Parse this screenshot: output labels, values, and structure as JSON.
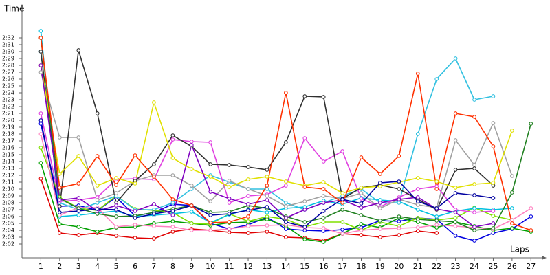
{
  "chart_data": {
    "type": "line",
    "ylabel": "Time",
    "xlabel": "Laps",
    "x": [
      1,
      2,
      3,
      4,
      5,
      6,
      7,
      8,
      9,
      10,
      11,
      12,
      13,
      14,
      15,
      16,
      17,
      18,
      19,
      20,
      21,
      22,
      23,
      24,
      25,
      26,
      27
    ],
    "xlim": [
      0,
      27.5
    ],
    "xticks": [
      1,
      2,
      3,
      4,
      5,
      6,
      7,
      8,
      9,
      10,
      11,
      12,
      13,
      14,
      15,
      16,
      17,
      18,
      19,
      20,
      21,
      22,
      23,
      24,
      25,
      26,
      27
    ],
    "ylim": [
      120,
      155
    ],
    "yticks": [
      {
        "value": 122,
        "label": "2:02"
      },
      {
        "value": 123,
        "label": "2:03"
      },
      {
        "value": 124,
        "label": "2:04"
      },
      {
        "value": 125,
        "label": "2:05"
      },
      {
        "value": 126,
        "label": "2:06"
      },
      {
        "value": 127,
        "label": "2:07"
      },
      {
        "value": 128,
        "label": "2:08"
      },
      {
        "value": 129,
        "label": "2:09"
      },
      {
        "value": 130,
        "label": "2:10"
      },
      {
        "value": 131,
        "label": "2:11"
      },
      {
        "value": 132,
        "label": "2:12"
      },
      {
        "value": 133,
        "label": "2:13"
      },
      {
        "value": 134,
        "label": "2:14"
      },
      {
        "value": 135,
        "label": "2:15"
      },
      {
        "value": 136,
        "label": "2:16"
      },
      {
        "value": 137,
        "label": "2:17"
      },
      {
        "value": 138,
        "label": "2:18"
      },
      {
        "value": 139,
        "label": "2:19"
      },
      {
        "value": 140,
        "label": "2:20"
      },
      {
        "value": 141,
        "label": "2:21"
      },
      {
        "value": 142,
        "label": "2:22"
      },
      {
        "value": 143,
        "label": "2:23"
      },
      {
        "value": 144,
        "label": "2:24"
      },
      {
        "value": 145,
        "label": "2:25"
      },
      {
        "value": 146,
        "label": "2:26"
      },
      {
        "value": 147,
        "label": "2:27"
      },
      {
        "value": 148,
        "label": "2:28"
      },
      {
        "value": 149,
        "label": "2:29"
      },
      {
        "value": 150,
        "label": "2:30"
      },
      {
        "value": 151,
        "label": "2:31"
      },
      {
        "value": 152,
        "label": "2:32"
      }
    ],
    "grid": false,
    "series": [
      {
        "color": "#e00000",
        "values": [
          131.5,
          123.6,
          123.3,
          123.6,
          123.2,
          122.9,
          122.8,
          123.8,
          124.2,
          124.0,
          123.7,
          123.6,
          123.8,
          123.0,
          122.9,
          122.5,
          123.5,
          123.3,
          123.0,
          123.3,
          123.9,
          123.6,
          null,
          null,
          null,
          null,
          null
        ]
      },
      {
        "color": "#0000e0",
        "values": [
          139.5,
          127.5,
          127.6,
          126.9,
          128.8,
          126.1,
          126.6,
          127.8,
          127.6,
          125.0,
          124.2,
          124.8,
          125.9,
          124.2,
          124.0,
          123.9,
          124.1,
          124.4,
          125.4,
          125.3,
          125.8,
          125.6,
          123.2,
          122.5,
          123.6,
          124.2,
          126.0
        ]
      },
      {
        "color": "#00a000",
        "values": [
          133.8,
          124.9,
          124.5,
          123.8,
          124.4,
          124.5,
          125.0,
          125.3,
          125.0,
          124.7,
          125.1,
          125.2,
          125.6,
          124.6,
          122.7,
          122.3,
          123.5,
          124.9,
          124.4,
          125.8,
          125.2,
          124.4,
          125.2,
          124.6,
          124.0,
          124.3,
          123.8
        ]
      },
      {
        "color": "#80e000",
        "values": [
          136.0,
          128.8,
          127.2,
          126.9,
          129.0,
          127.1,
          126.9,
          126.6,
          125.0,
          124.9,
          126.4,
          125.3,
          126.0,
          125.6,
          124.5,
          125.2,
          125.2,
          124.0,
          125.2,
          124.6,
          125.8,
          125.5,
          125.8,
          127.3,
          126.1,
          125.5,
          null
        ]
      },
      {
        "color": "#00c0e0",
        "values": [
          153.0,
          126.0,
          126.2,
          126.5,
          126.8,
          126.0,
          126.2,
          126.4,
          126.7,
          125.1,
          126.3,
          127.0,
          126.6,
          127.2,
          127.4,
          128.3,
          127.8,
          128.7,
          128.4,
          128.2,
          127.0,
          126.0,
          126.8,
          127.2,
          127.0,
          127.2,
          null
        ]
      },
      {
        "color": "#30c0e0",
        "values": [
          150.0,
          128.0,
          127.0,
          128.0,
          129.0,
          127.0,
          127.0,
          128.0,
          130.0,
          132.0,
          131.0,
          130.0,
          130.0,
          128.0,
          127.0,
          128.0,
          129.0,
          130.0,
          128.0,
          128.0,
          138.0,
          146.0,
          149.0,
          143.0,
          143.5,
          null,
          null
        ]
      },
      {
        "color": "#e040e0",
        "values": [
          141.0,
          128.2,
          128.4,
          128.8,
          131.4,
          131.5,
          131.4,
          137.2,
          136.9,
          136.8,
          128.0,
          129.0,
          129.2,
          130.5,
          137.4,
          134.0,
          135.5,
          128.6,
          127.4,
          128.8,
          130.0,
          130.4,
          127.0,
          126.6,
          126.8,
          null,
          null
        ]
      },
      {
        "color": "#ff80c0",
        "values": [
          138.0,
          126.2,
          127.3,
          127.3,
          124.5,
          124.8,
          124.6,
          124.5,
          124.0,
          124.0,
          124.2,
          124.6,
          124.7,
          124.8,
          124.4,
          124.3,
          123.5,
          124.0,
          124.2,
          124.3,
          124.4,
          124.8,
          124.6,
          124.4,
          124.2,
          125.5,
          127.2
        ]
      },
      {
        "color": "#a0a0a0",
        "values": [
          147.0,
          137.5,
          137.5,
          128.4,
          129.4,
          131.2,
          132.0,
          132.0,
          130.5,
          128.2,
          131.2,
          130.0,
          129.0,
          127.5,
          128.2,
          129.0,
          128.6,
          129.4,
          127.2,
          128.5,
          127.7,
          127.3,
          137.1,
          133.5,
          139.6,
          131.9,
          null
        ]
      },
      {
        "color": "#303030",
        "values": [
          150.0,
          127.5,
          150.2,
          141.0,
          128.0,
          131.2,
          133.6,
          137.8,
          136.2,
          133.6,
          133.5,
          133.2,
          132.8,
          136.8,
          143.5,
          143.4,
          128.6,
          130.2,
          130.6,
          130.0,
          128.5,
          127.0,
          132.8,
          133.0,
          130.5,
          null,
          null
        ]
      },
      {
        "color": "#e0e000",
        "values": [
          148.0,
          132.2,
          134.8,
          130.5,
          131.6,
          130.8,
          142.6,
          134.5,
          132.9,
          131.8,
          130.3,
          131.4,
          131.8,
          131.1,
          130.5,
          131.0,
          129.4,
          130.2,
          130.4,
          131.0,
          131.6,
          131.1,
          130.2,
          130.7,
          130.9,
          138.5,
          null
        ]
      },
      {
        "color": "#208020",
        "values": [
          152.0,
          128.6,
          127.2,
          126.4,
          126.0,
          126.1,
          126.6,
          127.1,
          127.6,
          126.6,
          126.7,
          127.6,
          127.2,
          126.0,
          125.2,
          125.8,
          127.0,
          126.2,
          125.4,
          126.0,
          125.6,
          125.4,
          125.2,
          124.0,
          124.3,
          129.5,
          139.5
        ]
      },
      {
        "color": "#8000c0",
        "values": [
          148.0,
          128.4,
          128.7,
          126.8,
          127.6,
          126.8,
          127.8,
          126.2,
          136.4,
          129.6,
          128.6,
          127.8,
          128.4,
          125.8,
          127.0,
          128.0,
          128.4,
          127.3,
          128.0,
          128.5,
          128.8,
          127.1,
          126.6,
          124.5,
          125.0,
          null,
          null
        ]
      },
      {
        "color": "#0000a0",
        "values": [
          140.0,
          126.6,
          126.8,
          127.1,
          127.0,
          125.8,
          126.4,
          126.8,
          127.6,
          126.2,
          126.4,
          126.9,
          127.4,
          125.2,
          124.5,
          126.8,
          128.5,
          127.9,
          130.9,
          131.1,
          128.2,
          127.2,
          129.4,
          129.1,
          128.7,
          null,
          null
        ]
      },
      {
        "color": "#ff3000",
        "values": [
          152.0,
          130.2,
          130.8,
          134.8,
          130.6,
          134.9,
          131.8,
          128.5,
          127.6,
          125.1,
          125.2,
          126.0,
          130.5,
          144.0,
          130.3,
          130.0,
          128.0,
          134.6,
          132.2,
          134.8,
          146.8,
          130.0,
          141.0,
          140.5,
          136.2,
          125.0,
          124.0
        ]
      }
    ]
  }
}
